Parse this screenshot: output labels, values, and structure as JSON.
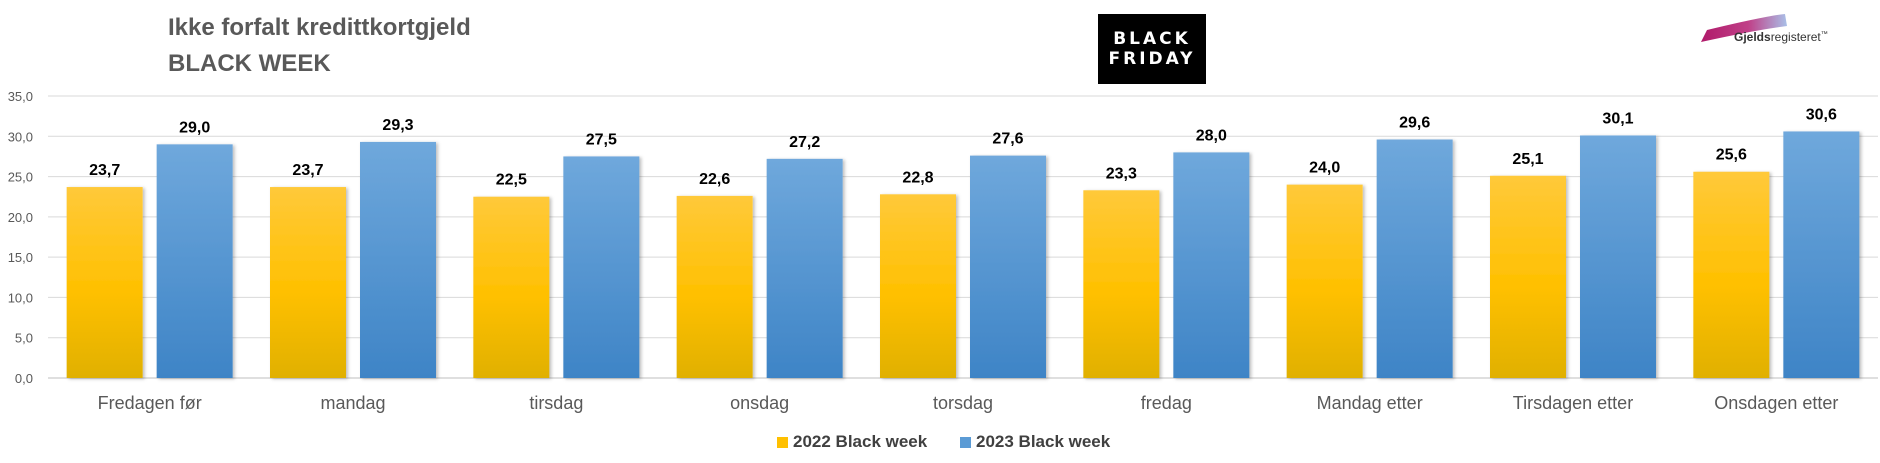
{
  "header": {
    "title_line1": "Ikke forfalt kredittkortgjeld",
    "title_line2": "BLACK WEEK",
    "badge_line1": "BLACK",
    "badge_line2": "FRIDAY",
    "logo_text_bold": "Gjelds",
    "logo_text_rest": "registeret",
    "logo_mark": "™"
  },
  "colors": {
    "series_2022_top": "#FFC93A",
    "series_2022_mid": "#FFC000",
    "series_2022_bottom": "#E0B000",
    "series_2023_top": "#6FA8DC",
    "series_2023_bottom": "#3E84C6",
    "grid": "#D9D9D9",
    "axis_text": "#595959",
    "logo_magenta": "#B01A6A",
    "logo_blue": "#8FA8D8"
  },
  "chart_data": {
    "type": "bar",
    "categories": [
      "Fredagen før",
      "mandag",
      "tirsdag",
      "onsdag",
      "torsdag",
      "fredag",
      "Mandag etter",
      "Tirsdagen etter",
      "Onsdagen etter"
    ],
    "series": [
      {
        "name": "2022 Black week",
        "values": [
          23.7,
          23.7,
          22.5,
          22.6,
          22.8,
          23.3,
          24.0,
          25.1,
          25.6
        ]
      },
      {
        "name": "2023 Black week",
        "values": [
          29.0,
          29.3,
          27.5,
          27.2,
          27.6,
          28.0,
          29.6,
          30.1,
          30.6
        ]
      }
    ],
    "ylim": [
      0,
      35
    ],
    "yticks": [
      "0,0",
      "5,0",
      "10,0",
      "15,0",
      "20,0",
      "25,0",
      "30,0",
      "35,0"
    ],
    "data_labels": [
      [
        "23,7",
        "23,7",
        "22,5",
        "22,6",
        "22,8",
        "23,3",
        "24,0",
        "25,1",
        "25,6"
      ],
      [
        "29,0",
        "29,3",
        "27,5",
        "27,2",
        "27,6",
        "28,0",
        "29,6",
        "30,1",
        "30,6"
      ]
    ],
    "grid": true,
    "legend_position": "bottom"
  }
}
